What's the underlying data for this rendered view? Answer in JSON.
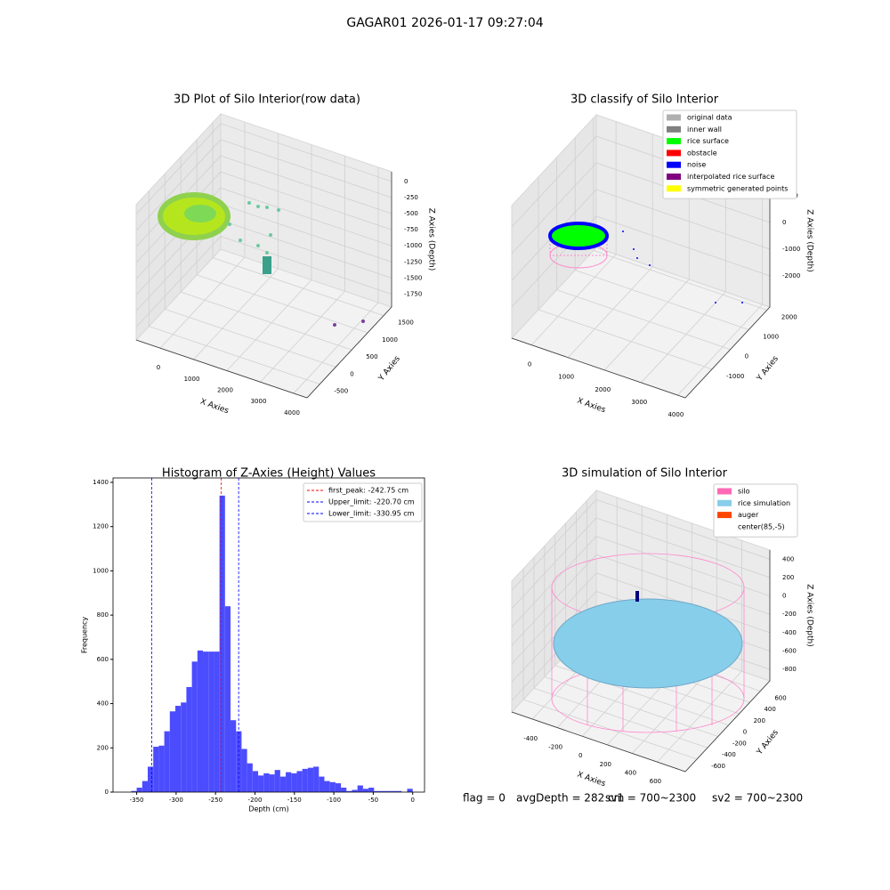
{
  "title": "GAGAR01 2026-01-17 09:27:04",
  "chart_data": [
    {
      "type": "scatter3d",
      "title": "3D Plot of Silo Interior(row data)",
      "x_label": "X Axies",
      "y_label": "Y Axies",
      "z_label": "Z Axies (Depth)",
      "xlim": [
        -720,
        4400
      ],
      "ylim": [
        -900,
        1750
      ],
      "zlim": [
        -1950,
        150
      ],
      "xticks": [
        0,
        1000,
        2000,
        3000,
        4000
      ],
      "yticks": [
        -500,
        0,
        500,
        1000,
        1500
      ],
      "zticks": [
        0,
        -250,
        -500,
        -750,
        -1000,
        -1250,
        -1500,
        -1750
      ]
    },
    {
      "type": "scatter3d",
      "title": "3D classify of Silo Interior",
      "x_label": "X Axies",
      "y_label": "Y Axies",
      "z_label": "Z Axies (Depth)",
      "xlim": [
        -540,
        4210
      ],
      "ylim": [
        -2450,
        2150
      ],
      "zlim": [
        -3170,
        1800
      ],
      "xticks": [
        0,
        1000,
        2000,
        3000,
        4000
      ],
      "yticks": [
        -1000,
        0,
        1000,
        2000
      ],
      "zticks": [
        1000,
        0,
        -1000,
        -2000
      ],
      "series": [
        {
          "name": "original data",
          "color": "#b0b0b0"
        },
        {
          "name": "inner wall",
          "color": "#808080"
        },
        {
          "name": "rice surface",
          "color": "#00ff00"
        },
        {
          "name": "obstacle",
          "color": "#ff0000"
        },
        {
          "name": "noise",
          "color": "#0000ff"
        },
        {
          "name": "interpolated rice surface",
          "color": "#800080"
        },
        {
          "name": "symmetric generated points",
          "color": "#ffff00"
        }
      ]
    },
    {
      "type": "histogram",
      "title": "Histogram of Z-Axies (Height) Values",
      "x_label": "Depth (cm)",
      "y_label": "Frequency",
      "color": "#4c4cff",
      "bins": [
        -357,
        -350,
        -343,
        -336,
        -329,
        -322,
        -315,
        -308,
        -301,
        -294,
        -287,
        -280,
        -273,
        -266,
        -259,
        -252,
        -245,
        -238,
        -231,
        -224,
        -217,
        -210,
        -203,
        -196,
        -189,
        -182,
        -175,
        -168,
        -161,
        -154,
        -147,
        -140,
        -133,
        -126,
        -119,
        -112,
        -105,
        -98,
        -91,
        -84,
        -77,
        -70,
        -63,
        -56,
        -49,
        -42,
        -35,
        -28,
        -21,
        -14,
        -7,
        0
      ],
      "values": [
        5,
        20,
        50,
        115,
        205,
        210,
        275,
        365,
        390,
        405,
        475,
        590,
        640,
        635,
        635,
        635,
        1340,
        840,
        325,
        275,
        195,
        130,
        95,
        75,
        85,
        80,
        100,
        70,
        90,
        85,
        95,
        105,
        110,
        115,
        70,
        50,
        45,
        40,
        20,
        5,
        10,
        30,
        15,
        20,
        5,
        5,
        5,
        5,
        5,
        0,
        15
      ],
      "xlim": [
        -380,
        15
      ],
      "ylim": [
        0,
        1420
      ],
      "xticks": [
        -350,
        -300,
        -250,
        -200,
        -150,
        -100,
        -50,
        0
      ],
      "yticks": [
        0,
        200,
        400,
        600,
        800,
        1000,
        1200,
        1400
      ],
      "lines": [
        {
          "name": "first_peak: -242.75 cm",
          "value": -242.75,
          "color": "#ff0000"
        },
        {
          "name": "Upper_limit: -220.70 cm",
          "value": -220.7,
          "color": "#0000ff"
        },
        {
          "name": "Lower_limit: -330.95 cm",
          "value": -330.95,
          "color": "#0000ff"
        }
      ]
    },
    {
      "type": "scatter3d",
      "title": "3D simulation of Silo Interior",
      "x_label": "X Axies",
      "y_label": "Y Axies",
      "z_label": "Z Axies (Depth)",
      "xlim": [
        -565,
        825
      ],
      "ylim": [
        -820,
        780
      ],
      "zlim": [
        -925,
        500
      ],
      "xticks": [
        -400,
        -200,
        0,
        200,
        400,
        600
      ],
      "yticks": [
        -600,
        -400,
        -200,
        0,
        200,
        400,
        600
      ],
      "zticks": [
        400,
        200,
        0,
        -200,
        -400,
        -600,
        -800
      ],
      "series": [
        {
          "name": "silo",
          "color": "#ff69b4"
        },
        {
          "name": "rice simulation",
          "color": "#87ceeb"
        },
        {
          "name": "auger",
          "color": "#ff4500"
        },
        {
          "name": "center(85,-5)",
          "color": "#ffffff"
        }
      ]
    }
  ],
  "footer": {
    "flag": "flag = 0",
    "avg_depth": "avgDepth = 282 cm",
    "sv1": "sv1 = 700~2300",
    "sv2": "sv2 = 700~2300"
  }
}
